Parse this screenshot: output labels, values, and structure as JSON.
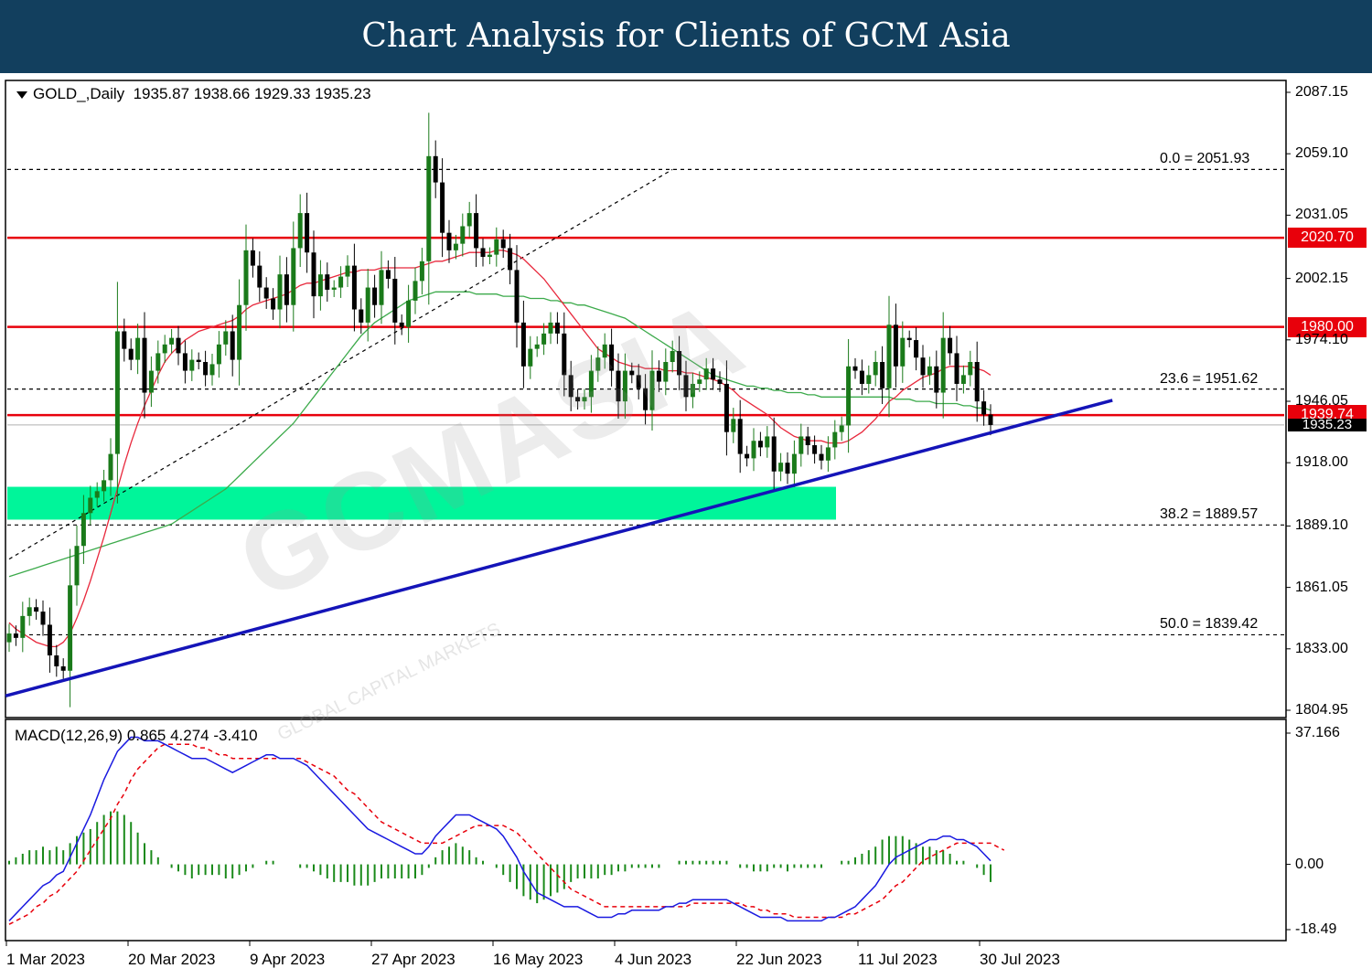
{
  "banner": {
    "title": "Chart Analysis for Clients of GCM Asia"
  },
  "header": {
    "symbol": "GOLD_,Daily",
    "ohlc": "1935.87 1938.66 1929.33 1935.23"
  },
  "macd_header": {
    "label": "MACD(12,26,9) 0.865 4.274 -3.410"
  },
  "watermark": {
    "text": "GCMASIA",
    "sub": "GLOBAL CAPITAL MARKETS"
  },
  "colors": {
    "banner": "#123f5e",
    "support_resistance": "#e8000b",
    "trendline": "#1414b8",
    "zone": "#00f59a",
    "ma20": "#e8283c",
    "ma50": "#3caa4b",
    "bull": "#1a7a1a",
    "bear": "#000000",
    "macd": "#1a1ae0",
    "signal": "#e8000b",
    "histogram": "#1a8a1a"
  },
  "chart_data": [
    {
      "type": "candlestick",
      "symbol": "GOLD_",
      "timeframe": "Daily",
      "ylim": [
        1804.95,
        2087.15
      ],
      "y_ticks": [
        "2087.15",
        "2059.10",
        "2031.05",
        "2002.15",
        "1974.10",
        "1946.05",
        "1918.00",
        "1889.10",
        "1861.05",
        "1833.00",
        "1804.95"
      ],
      "x_ticks": [
        "1 Mar 2023",
        "20 Mar 2023",
        "9 Apr 2023",
        "27 Apr 2023",
        "16 May 2023",
        "4 Jun 2023",
        "22 Jun 2023",
        "11 Jul 2023",
        "30 Jul 2023"
      ],
      "last_close": 1935.23,
      "last_close_label": "1935.23",
      "horizontal_levels": [
        {
          "value": 2020.7,
          "label": "2020.70"
        },
        {
          "value": 1980.0,
          "label": "1980.00"
        },
        {
          "value": 1939.74,
          "label": "1939.74"
        }
      ],
      "fibonacci": [
        {
          "value": 2051.93,
          "label": "0.0 = 2051.93"
        },
        {
          "value": 1951.62,
          "label": "23.6 = 1951.62"
        },
        {
          "value": 1889.57,
          "label": "38.2 = 1889.57"
        },
        {
          "value": 1839.42,
          "label": "50.0 = 1839.42"
        }
      ],
      "support_zone": [
        1892,
        1907
      ],
      "trendline": [
        [
          0,
          1811.5
        ],
        [
          163,
          1946.5
        ]
      ],
      "fib_trendline": [
        [
          0,
          1874
        ],
        [
          98,
          2051.93
        ]
      ],
      "close": [
        1840,
        1838,
        1848,
        1852,
        1850,
        1844,
        1830,
        1825,
        1823,
        1862,
        1880,
        1895,
        1902,
        1905,
        1910,
        1922,
        1978,
        1970,
        1965,
        1975,
        1950,
        1960,
        1968,
        1972,
        1975,
        1968,
        1960,
        1965,
        1964,
        1958,
        1963,
        1972,
        1978,
        1965,
        1990,
        2015,
        2008,
        1998,
        1993,
        1988,
        2004,
        1990,
        2016,
        2032,
        2014,
        1994,
        2004,
        1997,
        1998,
        2003,
        2008,
        1988,
        1982,
        1998,
        1990,
        2006,
        2002,
        1982,
        1980,
        1992,
        2001,
        2010,
        2058,
        2046,
        2023,
        2015,
        2018,
        2026,
        2032,
        2016,
        2012,
        2013,
        2020,
        2016,
        2006,
        1982,
        1962,
        1970,
        1972,
        1977,
        1982,
        1977,
        1958,
        1948,
        1946,
        1948,
        1960,
        1966,
        1972,
        1960,
        1946,
        1960,
        1958,
        1952,
        1942,
        1960,
        1955,
        1964,
        1969,
        1958,
        1948,
        1954,
        1956,
        1961,
        1956,
        1954,
        1932,
        1938,
        1922,
        1920,
        1928,
        1925,
        1930,
        1914,
        1918,
        1913,
        1922,
        1930,
        1926,
        1922,
        1919,
        1925,
        1932,
        1935,
        1962,
        1960,
        1954,
        1958,
        1964,
        1952,
        1981,
        1962,
        1975,
        1974,
        1966,
        1958,
        1962,
        1950,
        1975,
        1968,
        1954,
        1958,
        1964,
        1946,
        1940,
        1935.23
      ],
      "ma20": [
        1845,
        1842,
        1840,
        1838,
        1836,
        1835,
        1834,
        1834,
        1836,
        1840,
        1847,
        1855,
        1864,
        1874,
        1884,
        1895,
        1906,
        1917,
        1927,
        1936,
        1944,
        1951,
        1958,
        1964,
        1968,
        1971,
        1974,
        1976,
        1978,
        1979,
        1980,
        1981,
        1982,
        1983,
        1985,
        1988,
        1990,
        1991,
        1992,
        1993,
        1994,
        1995,
        1997,
        1999,
        2000,
        2000,
        2001,
        2002,
        2003,
        2004,
        2005,
        2005,
        2006,
        2006,
        2006,
        2007,
        2007,
        2007,
        2007,
        2007,
        2007,
        2008,
        2009,
        2010,
        2010,
        2011,
        2012,
        2013,
        2014,
        2014,
        2014,
        2014,
        2015,
        2015,
        2014,
        2013,
        2011,
        2008,
        2005,
        2002,
        1998,
        1994,
        1990,
        1986,
        1982,
        1978,
        1974,
        1970,
        1968,
        1966,
        1964,
        1963,
        1962,
        1962,
        1961,
        1961,
        1961,
        1960,
        1960,
        1960,
        1959,
        1959,
        1958,
        1957,
        1956,
        1955,
        1953,
        1951,
        1948,
        1946,
        1944,
        1942,
        1940,
        1937,
        1934,
        1932,
        1930,
        1929,
        1928,
        1928,
        1928,
        1927,
        1927,
        1927,
        1928,
        1930,
        1932,
        1935,
        1938,
        1942,
        1946,
        1948,
        1951,
        1953,
        1955,
        1957,
        1958,
        1959,
        1961,
        1962,
        1962,
        1962,
        1962,
        1961,
        1960,
        1958
      ],
      "ma50": [
        1866,
        1867,
        1868,
        1869,
        1870,
        1871,
        1872,
        1873,
        1874,
        1875,
        1876,
        1877,
        1878,
        1879,
        1880,
        1881,
        1882,
        1883,
        1884,
        1885,
        1886,
        1887,
        1888,
        1889,
        1890,
        1892,
        1894,
        1896,
        1898,
        1900,
        1902,
        1904,
        1906,
        1909,
        1912,
        1915,
        1918,
        1921,
        1924,
        1927,
        1930,
        1933,
        1936,
        1940,
        1944,
        1948,
        1952,
        1956,
        1960,
        1964,
        1968,
        1972,
        1976,
        1979,
        1982,
        1984,
        1986,
        1988,
        1990,
        1992,
        1993,
        1994,
        1995,
        1996,
        1996,
        1996,
        1996,
        1996,
        1996,
        1995,
        1995,
        1995,
        1995,
        1994,
        1994,
        1994,
        1994,
        1993,
        1993,
        1993,
        1992,
        1992,
        1991,
        1991,
        1990,
        1990,
        1989,
        1988,
        1987,
        1986,
        1985,
        1984,
        1982,
        1980,
        1978,
        1976,
        1974,
        1972,
        1970,
        1968,
        1966,
        1964,
        1962,
        1960,
        1958,
        1957,
        1956,
        1955,
        1954,
        1953,
        1953,
        1952,
        1952,
        1951,
        1951,
        1950,
        1950,
        1950,
        1949,
        1949,
        1948,
        1948,
        1948,
        1948,
        1948,
        1948,
        1948,
        1948,
        1948,
        1948,
        1948,
        1947,
        1947,
        1947,
        1946,
        1946,
        1946,
        1945,
        1945,
        1945,
        1945,
        1944,
        1944,
        1943,
        1943,
        1942
      ]
    },
    {
      "type": "macd",
      "params": "MACD(12,26,9)",
      "values": {
        "macd": 0.865,
        "signal": 4.274,
        "histogram": -3.41
      },
      "ylim": [
        -18.49,
        37.166
      ],
      "y_ticks": [
        "37.166",
        "0.00",
        "-18.49"
      ],
      "macd_line": [
        -16,
        -14,
        -12,
        -10,
        -8,
        -6,
        -5,
        -3,
        -2,
        2,
        6,
        10,
        14,
        19,
        24,
        28,
        32,
        34,
        36,
        36,
        35,
        35,
        35,
        34,
        33,
        32,
        31,
        30,
        30,
        30,
        29,
        28,
        27,
        26,
        27,
        28,
        29,
        30,
        31,
        31,
        30,
        30,
        30,
        29,
        28,
        26,
        24,
        22,
        20,
        18,
        16,
        14,
        12,
        10,
        9,
        8,
        7,
        6,
        5,
        4,
        3,
        3,
        5,
        8,
        10,
        12,
        14,
        14,
        14,
        13,
        12,
        11,
        10,
        8,
        5,
        2,
        -2,
        -5,
        -8,
        -9,
        -10,
        -11,
        -12,
        -12,
        -12,
        -13,
        -14,
        -15,
        -15,
        -15,
        -14,
        -14,
        -13,
        -13,
        -13,
        -13,
        -13,
        -12,
        -12,
        -11,
        -11,
        -10,
        -10,
        -10,
        -10,
        -10,
        -10,
        -11,
        -12,
        -13,
        -14,
        -15,
        -15,
        -15,
        -15,
        -16,
        -16,
        -16,
        -16,
        -16,
        -16,
        -15,
        -15,
        -14,
        -13,
        -12,
        -10,
        -8,
        -6,
        -3,
        0,
        2,
        3,
        4,
        5,
        6,
        7,
        7,
        8,
        8,
        7,
        7,
        6,
        5,
        3,
        1
      ],
      "signal_line": [
        -17,
        -16,
        -15,
        -14,
        -12,
        -11,
        -9,
        -8,
        -6,
        -4,
        -2,
        1,
        4,
        7,
        10,
        13,
        17,
        20,
        24,
        27,
        29,
        31,
        33,
        34,
        34,
        34,
        34,
        34,
        33,
        33,
        32,
        31,
        31,
        30,
        30,
        30,
        30,
        30,
        30,
        30,
        30,
        30,
        30,
        30,
        29,
        28,
        27,
        26,
        25,
        23,
        21,
        20,
        18,
        16,
        14,
        12,
        11,
        10,
        9,
        8,
        7,
        6,
        6,
        6,
        6,
        7,
        8,
        9,
        10,
        11,
        11,
        11,
        11,
        11,
        10,
        9,
        7,
        5,
        3,
        1,
        -1,
        -3,
        -5,
        -7,
        -8,
        -9,
        -10,
        -11,
        -12,
        -12,
        -12,
        -12,
        -12,
        -12,
        -12,
        -12,
        -12,
        -12,
        -12,
        -12,
        -12,
        -11,
        -11,
        -11,
        -11,
        -11,
        -11,
        -11,
        -11,
        -12,
        -12,
        -13,
        -13,
        -14,
        -14,
        -14,
        -15,
        -15,
        -15,
        -15,
        -15,
        -15,
        -15,
        -15,
        -14,
        -14,
        -13,
        -12,
        -11,
        -10,
        -8,
        -6,
        -5,
        -3,
        -1,
        1,
        2,
        3,
        4,
        5,
        6,
        6,
        6,
        6,
        6,
        6,
        5,
        4
      ]
    }
  ]
}
